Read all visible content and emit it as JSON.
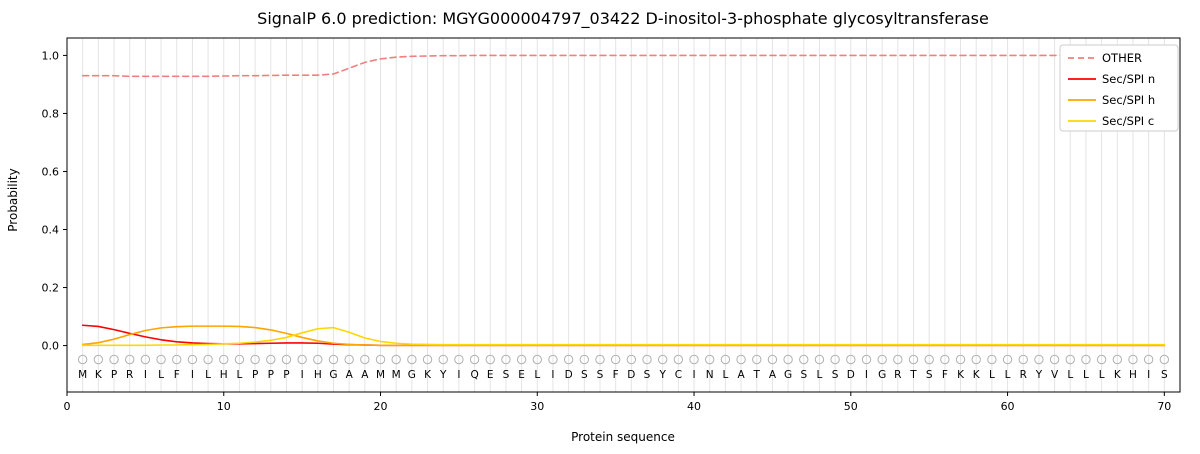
{
  "chart_data": {
    "type": "line",
    "title": "SignalP 6.0 prediction: MGYG000004797_03422 D-inositol-3-phosphate glycosyltransferase",
    "xlabel": "Protein sequence",
    "ylabel": "Probability",
    "xlim": [
      0,
      71
    ],
    "ylim": [
      -0.16,
      1.06
    ],
    "xticks": [
      0,
      10,
      20,
      30,
      40,
      50,
      60,
      70
    ],
    "yticks": [
      0.0,
      0.2,
      0.4,
      0.6,
      0.8,
      1.0
    ],
    "grid": "vertical-per-residue",
    "grid_color": "#e4e4e4",
    "legend_position": "upper right",
    "x_start": 1,
    "sequence": "MKPRILFILHLPPPIHGAAMMGKYIQESELIDSSFDSYCINLATAGSLSDIGRTSFKKLLRYVLLLKHIS",
    "marker": {
      "shape": "open-circle",
      "color": "#b0b0b0"
    },
    "series": [
      {
        "name": "OTHER",
        "color": "#f08080",
        "style": "dashed",
        "values": [
          0.93,
          0.93,
          0.93,
          0.928,
          0.928,
          0.928,
          0.928,
          0.928,
          0.928,
          0.929,
          0.93,
          0.93,
          0.931,
          0.932,
          0.932,
          0.932,
          0.936,
          0.956,
          0.976,
          0.988,
          0.994,
          0.997,
          0.998,
          0.999,
          0.999,
          1.0,
          1.0,
          1.0,
          1.0,
          1.0,
          1.0,
          1.0,
          1.0,
          1.0,
          1.0,
          1.0,
          1.0,
          1.0,
          1.0,
          1.0,
          1.0,
          1.0,
          1.0,
          1.0,
          1.0,
          1.0,
          1.0,
          1.0,
          1.0,
          1.0,
          1.0,
          1.0,
          1.0,
          1.0,
          1.0,
          1.0,
          1.0,
          1.0,
          1.0,
          1.0,
          1.0,
          1.0,
          1.0,
          1.0,
          1.0,
          1.0,
          1.0,
          1.0,
          1.0,
          1.0
        ]
      },
      {
        "name": "Sec/SPI n",
        "color": "#ff0000",
        "style": "solid",
        "values": [
          0.07,
          0.066,
          0.055,
          0.042,
          0.03,
          0.02,
          0.013,
          0.009,
          0.007,
          0.006,
          0.006,
          0.007,
          0.008,
          0.009,
          0.009,
          0.008,
          0.005,
          0.003,
          0.002,
          0.001,
          0.001,
          0.001,
          0.001,
          0.001,
          0.001,
          0.001,
          0.001,
          0.001,
          0.001,
          0.001,
          0.001,
          0.001,
          0.001,
          0.001,
          0.001,
          0.001,
          0.001,
          0.001,
          0.001,
          0.001,
          0.001,
          0.001,
          0.001,
          0.001,
          0.001,
          0.001,
          0.001,
          0.001,
          0.001,
          0.001,
          0.001,
          0.001,
          0.001,
          0.001,
          0.001,
          0.001,
          0.001,
          0.001,
          0.001,
          0.001,
          0.001,
          0.001,
          0.001,
          0.001,
          0.001,
          0.001,
          0.001,
          0.001,
          0.001,
          0.001
        ]
      },
      {
        "name": "Sec/SPI h",
        "color": "#ffa500",
        "style": "solid",
        "values": [
          0.004,
          0.01,
          0.022,
          0.038,
          0.052,
          0.061,
          0.065,
          0.067,
          0.067,
          0.067,
          0.066,
          0.062,
          0.054,
          0.042,
          0.028,
          0.016,
          0.008,
          0.004,
          0.002,
          0.001,
          0.001,
          0.001,
          0.001,
          0.001,
          0.001,
          0.001,
          0.001,
          0.001,
          0.001,
          0.001,
          0.001,
          0.001,
          0.001,
          0.001,
          0.001,
          0.001,
          0.001,
          0.001,
          0.001,
          0.001,
          0.001,
          0.001,
          0.001,
          0.001,
          0.001,
          0.001,
          0.001,
          0.001,
          0.001,
          0.001,
          0.001,
          0.001,
          0.001,
          0.001,
          0.001,
          0.001,
          0.001,
          0.001,
          0.001,
          0.001,
          0.001,
          0.001,
          0.001,
          0.001,
          0.001,
          0.001,
          0.001,
          0.001,
          0.001,
          0.001
        ]
      },
      {
        "name": "Sec/SPI c",
        "color": "#ffd700",
        "style": "solid",
        "values": [
          0.001,
          0.001,
          0.001,
          0.001,
          0.001,
          0.002,
          0.002,
          0.003,
          0.004,
          0.006,
          0.008,
          0.012,
          0.018,
          0.028,
          0.044,
          0.058,
          0.062,
          0.046,
          0.026,
          0.014,
          0.008,
          0.005,
          0.004,
          0.003,
          0.003,
          0.003,
          0.003,
          0.003,
          0.003,
          0.003,
          0.003,
          0.003,
          0.003,
          0.003,
          0.003,
          0.003,
          0.003,
          0.003,
          0.003,
          0.003,
          0.003,
          0.003,
          0.003,
          0.003,
          0.003,
          0.003,
          0.003,
          0.003,
          0.003,
          0.003,
          0.003,
          0.003,
          0.003,
          0.003,
          0.003,
          0.003,
          0.003,
          0.003,
          0.003,
          0.003,
          0.003,
          0.003,
          0.003,
          0.003,
          0.003,
          0.003,
          0.003,
          0.003,
          0.003,
          0.003
        ]
      }
    ]
  }
}
